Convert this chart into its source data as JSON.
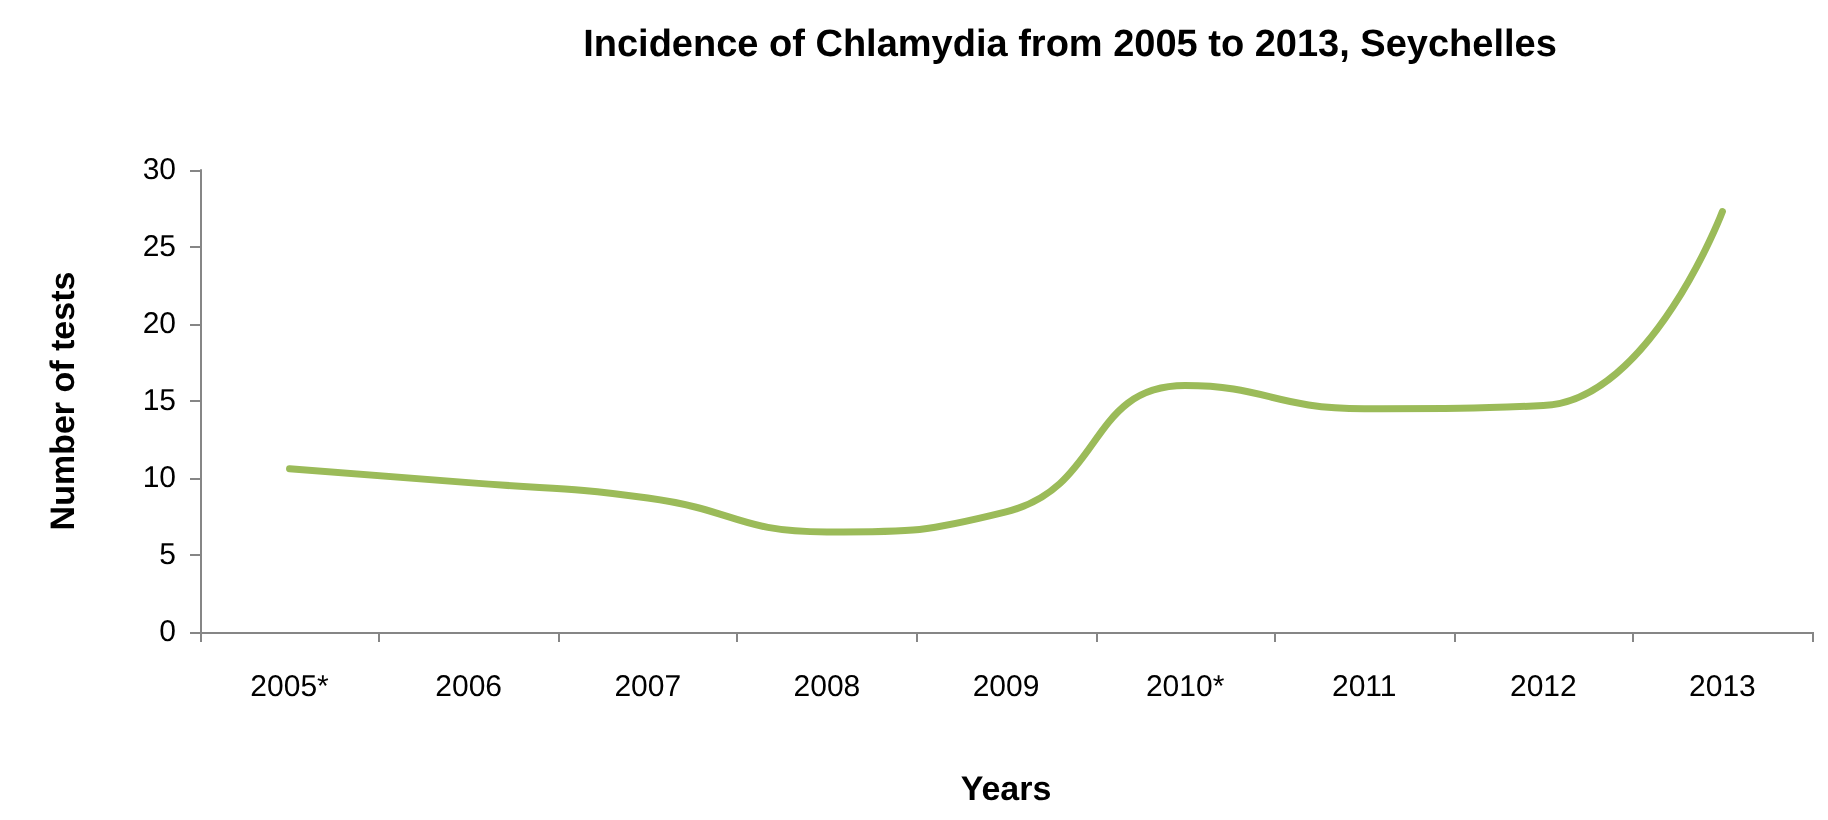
{
  "chart_data": {
    "type": "line",
    "title": "Incidence of Chlamydia from 2005 to 2013, Seychelles",
    "xlabel": "Years",
    "ylabel": "Number of tests",
    "categories": [
      "2005*",
      "2006",
      "2007",
      "2008",
      "2009",
      "2010*",
      "2011",
      "2012",
      "2013"
    ],
    "series": [
      {
        "color": "#9bbb59",
        "values": [
          10.6,
          9.7,
          8.7,
          6.5,
          7.8,
          16,
          14.5,
          14.7,
          27.3
        ]
      }
    ],
    "ylim": [
      0,
      30
    ],
    "yticks": [
      0,
      5,
      10,
      15,
      20,
      25,
      30
    ],
    "grid": false,
    "marker": "none",
    "line_style": "solid"
  }
}
